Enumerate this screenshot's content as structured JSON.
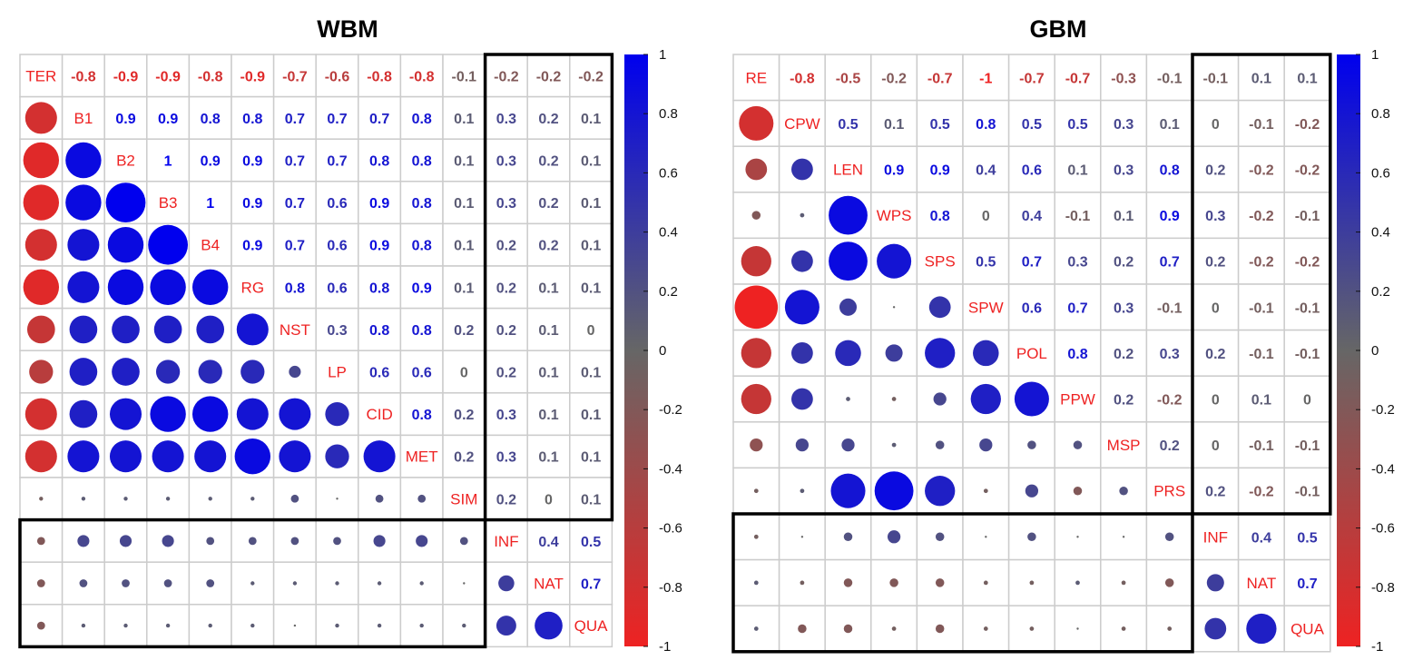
{
  "chart_data": [
    {
      "type": "heatmap",
      "title": "WBM",
      "variables": [
        "TER",
        "B1",
        "B2",
        "B3",
        "B4",
        "RG",
        "NST",
        "LP",
        "CID",
        "MET",
        "SIM",
        "INF",
        "NAT",
        "QUA"
      ],
      "matrix_upper": [
        [
          null,
          -0.8,
          -0.9,
          -0.9,
          -0.8,
          -0.9,
          -0.7,
          -0.6,
          -0.8,
          -0.8,
          -0.1,
          -0.2,
          -0.2,
          -0.2
        ],
        [
          null,
          null,
          0.9,
          0.9,
          0.8,
          0.8,
          0.7,
          0.7,
          0.7,
          0.8,
          0.1,
          0.3,
          0.2,
          0.1
        ],
        [
          null,
          null,
          null,
          1,
          0.9,
          0.9,
          0.7,
          0.7,
          0.8,
          0.8,
          0.1,
          0.3,
          0.2,
          0.1
        ],
        [
          null,
          null,
          null,
          null,
          1,
          0.9,
          0.7,
          0.6,
          0.9,
          0.8,
          0.1,
          0.3,
          0.2,
          0.1
        ],
        [
          null,
          null,
          null,
          null,
          null,
          0.9,
          0.7,
          0.6,
          0.9,
          0.8,
          0.1,
          0.2,
          0.2,
          0.1
        ],
        [
          null,
          null,
          null,
          null,
          null,
          null,
          0.8,
          0.6,
          0.8,
          0.9,
          0.1,
          0.2,
          0.1,
          0.1
        ],
        [
          null,
          null,
          null,
          null,
          null,
          null,
          null,
          0.3,
          0.8,
          0.8,
          0.2,
          0.2,
          0.1,
          0
        ],
        [
          null,
          null,
          null,
          null,
          null,
          null,
          null,
          null,
          0.6,
          0.6,
          0,
          0.2,
          0.1,
          0.1
        ],
        [
          null,
          null,
          null,
          null,
          null,
          null,
          null,
          null,
          null,
          0.8,
          0.2,
          0.3,
          0.1,
          0.1
        ],
        [
          null,
          null,
          null,
          null,
          null,
          null,
          null,
          null,
          null,
          null,
          0.2,
          0.3,
          0.1,
          0.1
        ],
        [
          null,
          null,
          null,
          null,
          null,
          null,
          null,
          null,
          null,
          null,
          null,
          0.2,
          0,
          0.1
        ],
        [
          null,
          null,
          null,
          null,
          null,
          null,
          null,
          null,
          null,
          null,
          null,
          null,
          0.4,
          0.5
        ],
        [
          null,
          null,
          null,
          null,
          null,
          null,
          null,
          null,
          null,
          null,
          null,
          null,
          null,
          0.7
        ],
        [
          null,
          null,
          null,
          null,
          null,
          null,
          null,
          null,
          null,
          null,
          null,
          null,
          null,
          null
        ]
      ],
      "colorbar_ticks": [
        "1",
        "0.8",
        "0.6",
        "0.4",
        "0.2",
        "0",
        "-0.2",
        "-0.4",
        "-0.6",
        "-0.8",
        "-1"
      ],
      "colorbar_range": [
        -1,
        1
      ],
      "highlight_boxes": [
        "upper-right (variables SIM→INF..QUA, columns INF,NAT,QUA)",
        "lower-left (rows INF,NAT,QUA)"
      ]
    },
    {
      "type": "heatmap",
      "title": "GBM",
      "variables": [
        "RE",
        "CPW",
        "LEN",
        "WPS",
        "SPS",
        "SPW",
        "POL",
        "PPW",
        "MSP",
        "PRS",
        "INF",
        "NAT",
        "QUA"
      ],
      "matrix_upper": [
        [
          null,
          -0.8,
          -0.5,
          -0.2,
          -0.7,
          -1,
          -0.7,
          -0.7,
          -0.3,
          -0.1,
          -0.1,
          0.1,
          0.1
        ],
        [
          null,
          null,
          0.5,
          0.1,
          0.5,
          0.8,
          0.5,
          0.5,
          0.3,
          0.1,
          0,
          -0.1,
          -0.2
        ],
        [
          null,
          null,
          null,
          0.9,
          0.9,
          0.4,
          0.6,
          0.1,
          0.3,
          0.8,
          0.2,
          -0.2,
          -0.2
        ],
        [
          null,
          null,
          null,
          null,
          0.8,
          0,
          0.4,
          -0.1,
          0.1,
          0.9,
          0.3,
          -0.2,
          -0.1
        ],
        [
          null,
          null,
          null,
          null,
          null,
          0.5,
          0.7,
          0.3,
          0.2,
          0.7,
          0.2,
          -0.2,
          -0.2
        ],
        [
          null,
          null,
          null,
          null,
          null,
          null,
          0.6,
          0.7,
          0.3,
          -0.1,
          0,
          -0.1,
          -0.1
        ],
        [
          null,
          null,
          null,
          null,
          null,
          null,
          null,
          0.8,
          0.2,
          0.3,
          0.2,
          -0.1,
          -0.1
        ],
        [
          null,
          null,
          null,
          null,
          null,
          null,
          null,
          null,
          0.2,
          -0.2,
          0,
          0.1,
          0
        ],
        [
          null,
          null,
          null,
          null,
          null,
          null,
          null,
          null,
          null,
          0.2,
          0,
          -0.1,
          -0.1
        ],
        [
          null,
          null,
          null,
          null,
          null,
          null,
          null,
          null,
          null,
          null,
          0.2,
          -0.2,
          -0.1
        ],
        [
          null,
          null,
          null,
          null,
          null,
          null,
          null,
          null,
          null,
          null,
          null,
          0.4,
          0.5
        ],
        [
          null,
          null,
          null,
          null,
          null,
          null,
          null,
          null,
          null,
          null,
          null,
          null,
          0.7
        ],
        [
          null,
          null,
          null,
          null,
          null,
          null,
          null,
          null,
          null,
          null,
          null,
          null,
          null
        ]
      ],
      "colorbar_ticks": [
        "1",
        "0.8",
        "0.6",
        "0.4",
        "0.2",
        "0",
        "-0.2",
        "-0.4",
        "-0.6",
        "-0.8",
        "-1"
      ],
      "colorbar_range": [
        -1,
        1
      ],
      "highlight_boxes": [
        "upper-right (columns INF,NAT,QUA)",
        "lower-left (rows INF,NAT,QUA)"
      ]
    }
  ],
  "colors": {
    "positive": "#0000ee",
    "neutral": "#666666",
    "negative": "#ee2222",
    "grid": "#cccccc"
  }
}
